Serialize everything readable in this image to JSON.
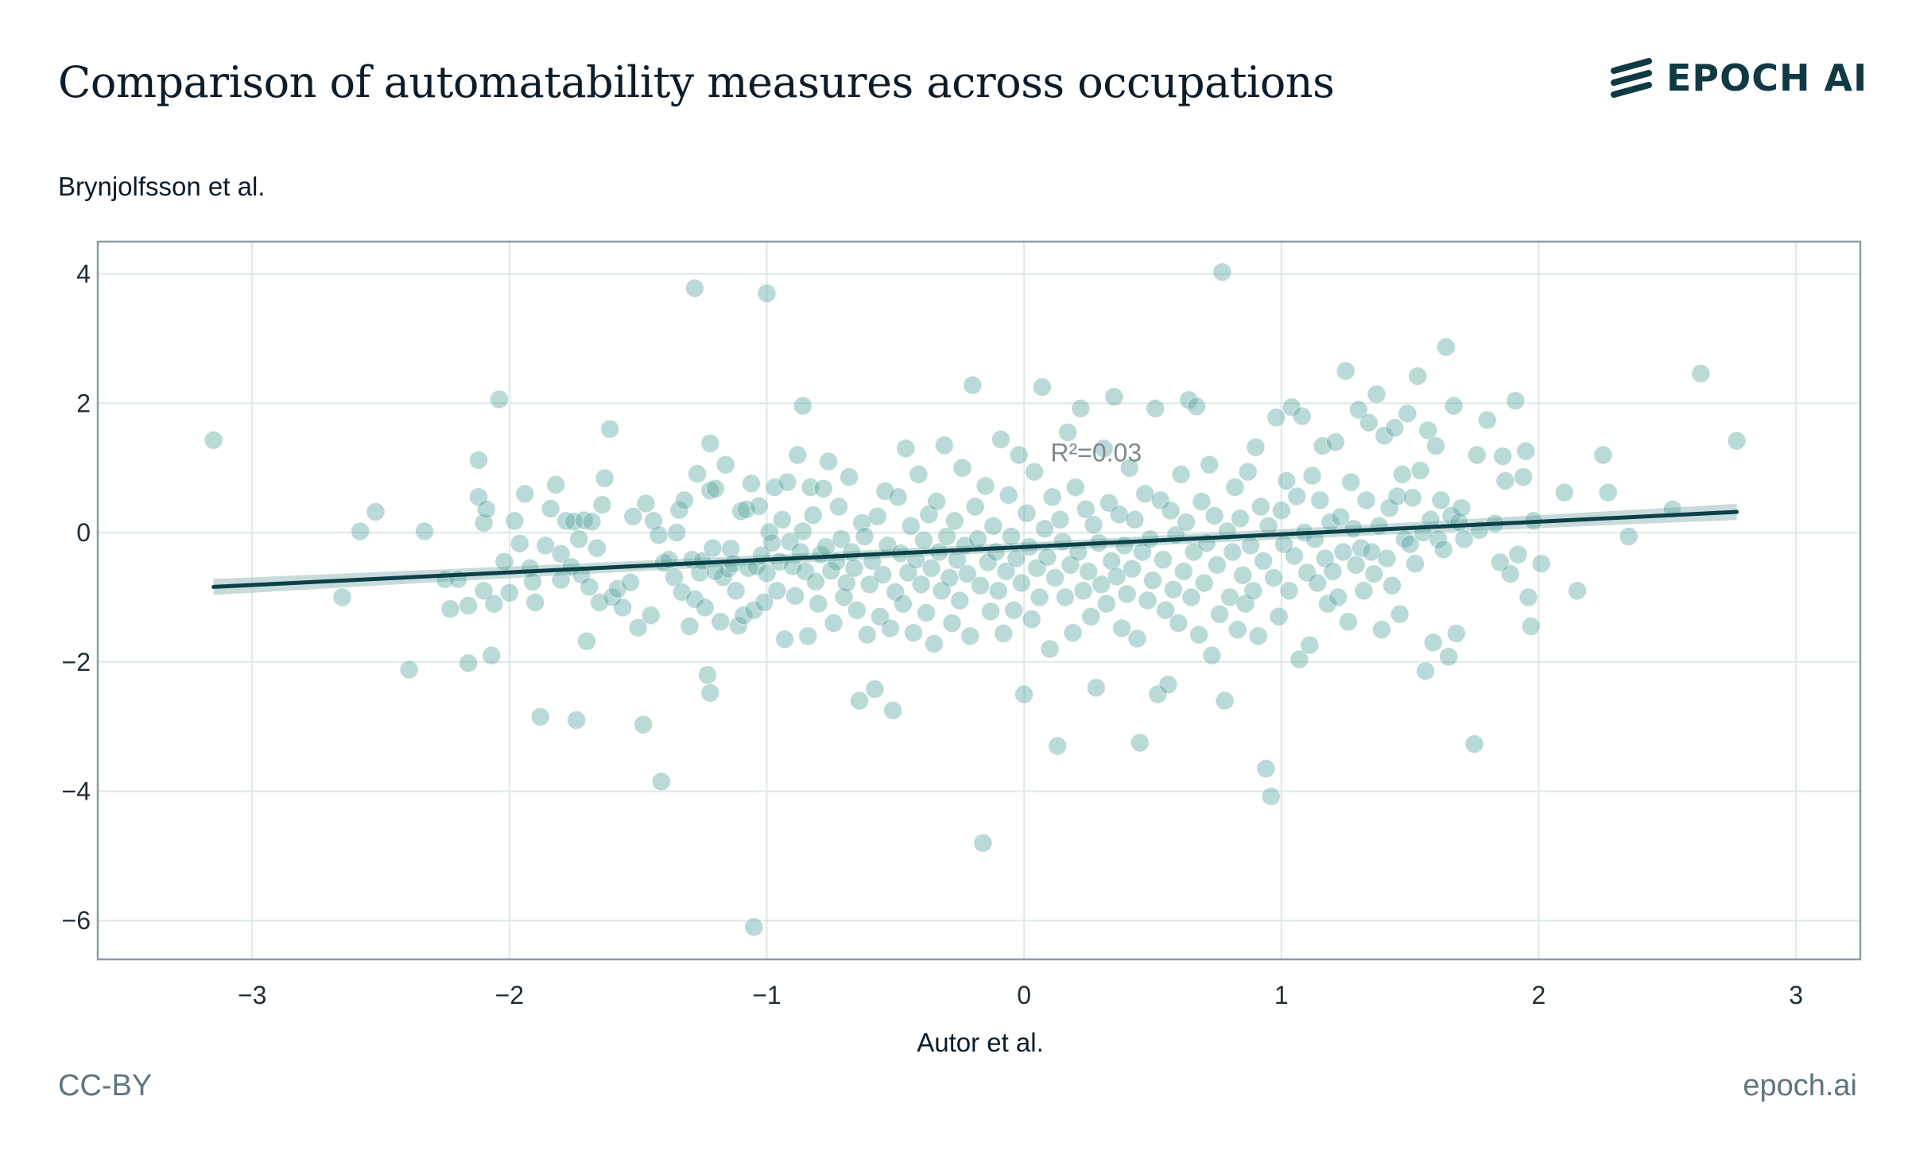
{
  "title": "Comparison of automatability measures across occupations",
  "brand": {
    "name": "EPOCH AI",
    "icon": "epoch-logo-icon"
  },
  "footer": {
    "license": "CC-BY",
    "site": "epoch.ai"
  },
  "colors": {
    "points": "#5aa8a0",
    "line": "#0c4048",
    "band": "#b4cfcd",
    "frame": "#8a9ea3",
    "grid": "#dde8e9"
  },
  "chart_data": {
    "type": "scatter",
    "title": "Comparison of automatability measures across occupations",
    "xlabel": "Autor et al.",
    "ylabel": "Brynjolfsson et al.",
    "xlim": [
      -3.6,
      3.25
    ],
    "ylim": [
      -6.6,
      4.5
    ],
    "x_ticks": [
      -3,
      -2,
      -1,
      0,
      1,
      2,
      3
    ],
    "y_ticks": [
      -6,
      -4,
      -2,
      0,
      2,
      4
    ],
    "x_tick_labels": [
      "−3",
      "−2",
      "−1",
      "0",
      "1",
      "2",
      "3"
    ],
    "y_tick_labels": [
      "−6",
      "−4",
      "−2",
      "0",
      "2",
      "4"
    ],
    "grid": true,
    "annotation": "R²=0.03",
    "annotation_pos": [
      0.28,
      1.0
    ],
    "trend_line": {
      "x": [
        -3.15,
        2.77
      ],
      "y": [
        -0.84,
        0.32
      ]
    },
    "points_approx": [
      [
        -3.15,
        1.43
      ],
      [
        -2.65,
        -1.0
      ],
      [
        -2.58,
        0.02
      ],
      [
        -2.52,
        0.32
      ],
      [
        -2.39,
        -2.12
      ],
      [
        -2.33,
        0.02
      ],
      [
        -2.25,
        -0.72
      ],
      [
        -2.23,
        -1.18
      ],
      [
        -2.2,
        -0.72
      ],
      [
        -2.16,
        -1.13
      ],
      [
        -2.16,
        -2.02
      ],
      [
        -2.12,
        0.55
      ],
      [
        -2.12,
        1.12
      ],
      [
        -2.1,
        0.15
      ],
      [
        -2.1,
        -0.9
      ],
      [
        -2.09,
        0.36
      ],
      [
        -2.07,
        -1.9
      ],
      [
        -2.06,
        -1.1
      ],
      [
        -2.04,
        2.06
      ],
      [
        -2.02,
        -0.45
      ],
      [
        -2.0,
        -0.93
      ],
      [
        -1.98,
        0.18
      ],
      [
        -1.96,
        -0.17
      ],
      [
        -1.94,
        0.6
      ],
      [
        -1.92,
        -0.55
      ],
      [
        -1.91,
        -0.76
      ],
      [
        -1.9,
        -1.08
      ],
      [
        -1.88,
        -2.85
      ],
      [
        -1.86,
        -0.2
      ],
      [
        -1.84,
        0.37
      ],
      [
        -1.82,
        0.74
      ],
      [
        -1.8,
        -0.73
      ],
      [
        -1.8,
        -0.33
      ],
      [
        -1.78,
        0.18
      ],
      [
        -1.76,
        -0.53
      ],
      [
        -1.75,
        0.17
      ],
      [
        -1.74,
        -2.9
      ],
      [
        -1.73,
        -0.1
      ],
      [
        -1.72,
        -0.65
      ],
      [
        -1.71,
        0.19
      ],
      [
        -1.7,
        -1.68
      ],
      [
        -1.69,
        -0.84
      ],
      [
        -1.68,
        0.17
      ],
      [
        -1.66,
        -0.24
      ],
      [
        -1.65,
        -1.08
      ],
      [
        -1.64,
        0.43
      ],
      [
        -1.63,
        0.84
      ],
      [
        -1.61,
        1.6
      ],
      [
        -1.6,
        -1.0
      ],
      [
        -1.58,
        -0.87
      ],
      [
        -1.56,
        -1.16
      ],
      [
        -1.53,
        -0.77
      ],
      [
        -1.52,
        0.25
      ],
      [
        -1.5,
        -1.47
      ],
      [
        -1.48,
        -2.97
      ],
      [
        -1.47,
        0.45
      ],
      [
        -1.45,
        -1.28
      ],
      [
        -1.44,
        0.18
      ],
      [
        -1.42,
        -0.04
      ],
      [
        -1.41,
        -3.85
      ],
      [
        -1.4,
        -0.47
      ],
      [
        -1.38,
        -0.42
      ],
      [
        -1.36,
        -0.69
      ],
      [
        -1.35,
        0.0
      ],
      [
        -1.34,
        0.35
      ],
      [
        -1.33,
        -0.92
      ],
      [
        -1.32,
        0.5
      ],
      [
        -1.3,
        -1.45
      ],
      [
        -1.29,
        -0.42
      ],
      [
        -1.28,
        -1.03
      ],
      [
        -1.27,
        0.91
      ],
      [
        -1.26,
        -0.62
      ],
      [
        -1.25,
        -0.44
      ],
      [
        -1.24,
        -1.16
      ],
      [
        -1.23,
        -2.2
      ],
      [
        -1.22,
        0.65
      ],
      [
        -1.22,
        1.38
      ],
      [
        -1.22,
        -2.48
      ],
      [
        -1.21,
        -0.24
      ],
      [
        -1.2,
        0.68
      ],
      [
        -1.18,
        -1.38
      ],
      [
        -1.17,
        -0.69
      ],
      [
        -1.16,
        1.05
      ],
      [
        -1.15,
        -0.56
      ],
      [
        -1.14,
        -0.25
      ],
      [
        -1.13,
        -0.48
      ],
      [
        -1.12,
        -0.9
      ],
      [
        -1.11,
        -1.44
      ],
      [
        -1.1,
        0.33
      ],
      [
        -1.09,
        -1.28
      ],
      [
        -1.08,
        0.36
      ],
      [
        -1.07,
        -0.55
      ],
      [
        -1.06,
        0.76
      ],
      [
        -1.05,
        -1.2
      ],
      [
        -1.04,
        -0.52
      ],
      [
        -1.03,
        0.41
      ],
      [
        -1.02,
        -0.35
      ],
      [
        -1.01,
        -1.08
      ],
      [
        -1.0,
        -0.63
      ],
      [
        -0.99,
        0.01
      ],
      [
        -0.98,
        -0.16
      ],
      [
        -0.97,
        0.7
      ],
      [
        -0.96,
        -0.9
      ],
      [
        -0.95,
        -0.45
      ],
      [
        -0.94,
        0.2
      ],
      [
        -0.93,
        -1.65
      ],
      [
        -0.92,
        0.78
      ],
      [
        -0.91,
        -0.14
      ],
      [
        -0.9,
        -0.52
      ],
      [
        -0.89,
        -0.98
      ],
      [
        -0.88,
        1.2
      ],
      [
        -0.87,
        -0.3
      ],
      [
        -0.86,
        0.02
      ],
      [
        -0.85,
        -0.6
      ],
      [
        -0.84,
        -1.6
      ],
      [
        -0.83,
        0.7
      ],
      [
        -0.82,
        0.27
      ],
      [
        -0.81,
        -0.76
      ],
      [
        -0.8,
        -1.1
      ],
      [
        -0.79,
        -0.34
      ],
      [
        -0.78,
        0.68
      ],
      [
        -0.77,
        -0.22
      ],
      [
        -0.76,
        1.1
      ],
      [
        -0.75,
        -0.59
      ],
      [
        -0.74,
        -1.4
      ],
      [
        -0.73,
        -0.45
      ],
      [
        -0.72,
        0.4
      ],
      [
        -0.71,
        -0.1
      ],
      [
        -0.7,
        -1.0
      ],
      [
        -0.69,
        -0.78
      ],
      [
        -0.68,
        0.86
      ],
      [
        -0.67,
        -0.3
      ],
      [
        -0.66,
        -0.55
      ],
      [
        -0.65,
        -1.2
      ],
      [
        -0.64,
        -2.6
      ],
      [
        -0.63,
        0.15
      ],
      [
        -0.62,
        -0.06
      ],
      [
        -0.61,
        -1.58
      ],
      [
        -0.6,
        -0.8
      ],
      [
        -0.59,
        -0.44
      ],
      [
        -0.58,
        -2.42
      ],
      [
        -0.57,
        0.25
      ],
      [
        -0.56,
        -1.3
      ],
      [
        -0.55,
        -0.65
      ],
      [
        -0.54,
        0.64
      ],
      [
        -0.53,
        -0.2
      ],
      [
        -0.52,
        -1.48
      ],
      [
        -0.51,
        -2.75
      ],
      [
        -0.5,
        -0.92
      ],
      [
        -0.49,
        0.55
      ],
      [
        -0.48,
        -0.32
      ],
      [
        -0.47,
        -1.1
      ],
      [
        -0.46,
        1.3
      ],
      [
        -0.45,
        -0.62
      ],
      [
        -0.44,
        0.1
      ],
      [
        -0.43,
        -1.55
      ],
      [
        -0.42,
        -0.42
      ],
      [
        -0.41,
        0.9
      ],
      [
        -0.4,
        -0.8
      ],
      [
        -0.39,
        -0.12
      ],
      [
        -0.38,
        -1.24
      ],
      [
        -0.37,
        0.28
      ],
      [
        -0.36,
        -0.55
      ],
      [
        -0.35,
        -1.72
      ],
      [
        -0.34,
        0.48
      ],
      [
        -0.33,
        -0.3
      ],
      [
        -0.32,
        -0.9
      ],
      [
        -0.31,
        1.35
      ],
      [
        -0.3,
        -0.06
      ],
      [
        -0.29,
        -0.7
      ],
      [
        -0.28,
        -1.4
      ],
      [
        -0.27,
        0.18
      ],
      [
        -0.26,
        -0.42
      ],
      [
        -0.25,
        -1.05
      ],
      [
        -0.24,
        1.0
      ],
      [
        -0.23,
        -0.2
      ],
      [
        -0.22,
        -0.64
      ],
      [
        -0.21,
        -1.6
      ],
      [
        -0.2,
        2.28
      ],
      [
        -0.19,
        0.4
      ],
      [
        -0.18,
        -0.1
      ],
      [
        -0.17,
        -0.82
      ],
      [
        -0.16,
        -4.8
      ],
      [
        -0.15,
        0.72
      ],
      [
        -0.14,
        -0.46
      ],
      [
        -0.13,
        -1.22
      ],
      [
        -0.12,
        0.1
      ],
      [
        -0.11,
        -0.3
      ],
      [
        -0.1,
        -0.9
      ],
      [
        -0.09,
        1.44
      ],
      [
        -0.08,
        -1.56
      ],
      [
        -0.07,
        -0.6
      ],
      [
        -0.06,
        0.58
      ],
      [
        -0.05,
        -0.06
      ],
      [
        -0.04,
        -1.2
      ],
      [
        -0.03,
        -0.4
      ],
      [
        -0.02,
        1.2
      ],
      [
        -0.01,
        -0.78
      ],
      [
        0.0,
        -2.5
      ],
      [
        0.01,
        0.3
      ],
      [
        0.02,
        -0.22
      ],
      [
        0.03,
        -1.34
      ],
      [
        0.04,
        0.94
      ],
      [
        0.05,
        -0.55
      ],
      [
        0.06,
        -1.0
      ],
      [
        0.07,
        2.25
      ],
      [
        0.08,
        0.06
      ],
      [
        0.09,
        -0.38
      ],
      [
        0.1,
        -1.8
      ],
      [
        0.11,
        0.55
      ],
      [
        0.12,
        -0.7
      ],
      [
        0.13,
        -3.3
      ],
      [
        0.14,
        0.2
      ],
      [
        0.15,
        -0.14
      ],
      [
        0.16,
        -1.0
      ],
      [
        0.17,
        1.55
      ],
      [
        0.18,
        -0.5
      ],
      [
        0.19,
        -1.55
      ],
      [
        0.2,
        0.7
      ],
      [
        0.21,
        -0.3
      ],
      [
        0.22,
        1.92
      ],
      [
        0.23,
        -0.9
      ],
      [
        0.24,
        0.36
      ],
      [
        0.25,
        -0.6
      ],
      [
        0.26,
        -1.3
      ],
      [
        0.27,
        0.12
      ],
      [
        0.28,
        -2.4
      ],
      [
        0.29,
        -0.16
      ],
      [
        0.3,
        -0.8
      ],
      [
        0.31,
        1.3
      ],
      [
        0.32,
        -1.1
      ],
      [
        0.33,
        0.46
      ],
      [
        0.34,
        -0.44
      ],
      [
        0.35,
        2.1
      ],
      [
        0.36,
        -0.68
      ],
      [
        0.37,
        0.28
      ],
      [
        0.38,
        -1.48
      ],
      [
        0.39,
        -0.2
      ],
      [
        0.4,
        -0.95
      ],
      [
        0.41,
        1.0
      ],
      [
        0.42,
        -0.56
      ],
      [
        0.43,
        0.2
      ],
      [
        0.44,
        -1.64
      ],
      [
        0.45,
        -3.25
      ],
      [
        0.46,
        -0.3
      ],
      [
        0.47,
        0.6
      ],
      [
        0.48,
        -1.05
      ],
      [
        0.49,
        -0.1
      ],
      [
        0.5,
        -0.74
      ],
      [
        0.51,
        1.92
      ],
      [
        0.52,
        -2.5
      ],
      [
        0.53,
        0.5
      ],
      [
        0.54,
        -0.42
      ],
      [
        0.55,
        -1.2
      ],
      [
        0.56,
        -2.35
      ],
      [
        0.57,
        0.34
      ],
      [
        0.58,
        -0.88
      ],
      [
        0.59,
        -0.04
      ],
      [
        0.6,
        -1.4
      ],
      [
        0.61,
        0.9
      ],
      [
        0.62,
        -0.6
      ],
      [
        0.63,
        0.16
      ],
      [
        0.64,
        2.05
      ],
      [
        0.65,
        -1.0
      ],
      [
        0.66,
        -0.3
      ],
      [
        0.67,
        1.95
      ],
      [
        0.68,
        -1.58
      ],
      [
        0.69,
        0.48
      ],
      [
        0.7,
        -0.78
      ],
      [
        0.71,
        -0.16
      ],
      [
        0.72,
        1.05
      ],
      [
        0.73,
        -1.9
      ],
      [
        0.74,
        0.26
      ],
      [
        0.75,
        -0.5
      ],
      [
        0.76,
        -1.26
      ],
      [
        0.77,
        4.03
      ],
      [
        0.78,
        -2.6
      ],
      [
        0.79,
        0.02
      ],
      [
        0.8,
        -1.0
      ],
      [
        0.81,
        -0.3
      ],
      [
        0.82,
        0.7
      ],
      [
        0.83,
        -1.5
      ],
      [
        0.84,
        0.22
      ],
      [
        0.85,
        -0.66
      ],
      [
        0.86,
        -1.1
      ],
      [
        0.87,
        0.94
      ],
      [
        0.88,
        -0.2
      ],
      [
        0.89,
        -0.9
      ],
      [
        0.9,
        1.32
      ],
      [
        0.91,
        -1.6
      ],
      [
        0.92,
        0.4
      ],
      [
        0.93,
        -0.44
      ],
      [
        0.94,
        -3.65
      ],
      [
        0.95,
        0.1
      ],
      [
        0.96,
        -4.08
      ],
      [
        0.97,
        -0.7
      ],
      [
        0.98,
        1.78
      ],
      [
        0.99,
        -1.3
      ],
      [
        1.0,
        0.34
      ],
      [
        1.01,
        -0.18
      ],
      [
        1.02,
        0.8
      ],
      [
        1.03,
        -0.9
      ],
      [
        1.04,
        1.94
      ],
      [
        1.05,
        -0.36
      ],
      [
        1.06,
        0.56
      ],
      [
        1.07,
        -1.96
      ],
      [
        1.08,
        1.8
      ],
      [
        1.09,
        0.0
      ],
      [
        1.1,
        -0.62
      ],
      [
        1.11,
        -1.74
      ],
      [
        1.12,
        0.88
      ],
      [
        1.13,
        -0.1
      ],
      [
        1.14,
        -0.78
      ],
      [
        1.15,
        0.5
      ],
      [
        1.16,
        1.34
      ],
      [
        1.17,
        -0.4
      ],
      [
        1.18,
        -1.1
      ],
      [
        1.19,
        0.16
      ],
      [
        1.2,
        -0.6
      ],
      [
        1.21,
        1.4
      ],
      [
        1.22,
        -1.0
      ],
      [
        1.23,
        0.24
      ],
      [
        1.24,
        -0.3
      ],
      [
        1.25,
        2.5
      ],
      [
        1.26,
        -1.38
      ],
      [
        1.27,
        0.78
      ],
      [
        1.28,
        0.06
      ],
      [
        1.29,
        -0.5
      ],
      [
        1.3,
        1.9
      ],
      [
        1.31,
        -0.24
      ],
      [
        1.32,
        -0.9
      ],
      [
        1.33,
        0.5
      ],
      [
        1.34,
        1.7
      ],
      [
        1.35,
        -0.3
      ],
      [
        1.36,
        -0.64
      ],
      [
        1.37,
        2.14
      ],
      [
        1.38,
        0.1
      ],
      [
        1.39,
        -1.5
      ],
      [
        1.4,
        1.5
      ],
      [
        1.41,
        -0.4
      ],
      [
        1.42,
        0.38
      ],
      [
        1.43,
        -0.82
      ],
      [
        1.44,
        1.62
      ],
      [
        1.45,
        0.56
      ],
      [
        1.46,
        -1.26
      ],
      [
        1.47,
        0.9
      ],
      [
        1.48,
        -0.1
      ],
      [
        1.49,
        1.84
      ],
      [
        1.5,
        -0.18
      ],
      [
        1.51,
        0.54
      ],
      [
        1.52,
        -0.48
      ],
      [
        1.53,
        2.42
      ],
      [
        1.54,
        0.96
      ],
      [
        1.55,
        0.0
      ],
      [
        1.56,
        -2.14
      ],
      [
        1.57,
        1.58
      ],
      [
        1.58,
        0.2
      ],
      [
        1.59,
        -1.7
      ],
      [
        1.6,
        1.34
      ],
      [
        1.61,
        -0.1
      ],
      [
        1.62,
        0.5
      ],
      [
        1.63,
        -0.26
      ],
      [
        1.64,
        2.87
      ],
      [
        1.65,
        -1.92
      ],
      [
        1.66,
        0.26
      ],
      [
        1.67,
        1.96
      ],
      [
        1.68,
        -1.56
      ],
      [
        1.69,
        0.16
      ],
      [
        1.7,
        0.38
      ],
      [
        1.71,
        -0.1
      ],
      [
        1.75,
        -3.27
      ],
      [
        1.76,
        1.2
      ],
      [
        1.77,
        0.04
      ],
      [
        1.8,
        1.74
      ],
      [
        1.83,
        0.14
      ],
      [
        1.85,
        -0.46
      ],
      [
        1.86,
        1.18
      ],
      [
        1.87,
        0.8
      ],
      [
        1.89,
        -0.64
      ],
      [
        1.91,
        2.04
      ],
      [
        1.92,
        -0.34
      ],
      [
        1.94,
        0.86
      ],
      [
        1.95,
        1.26
      ],
      [
        1.96,
        -1.0
      ],
      [
        1.97,
        -1.45
      ],
      [
        1.98,
        0.18
      ],
      [
        2.01,
        -0.48
      ],
      [
        2.1,
        0.62
      ],
      [
        2.15,
        -0.9
      ],
      [
        2.25,
        1.2
      ],
      [
        2.27,
        0.62
      ],
      [
        2.35,
        -0.06
      ],
      [
        2.52,
        0.36
      ],
      [
        2.63,
        2.46
      ],
      [
        2.77,
        1.42
      ],
      [
        -1.28,
        3.78
      ],
      [
        -1.0,
        3.7
      ],
      [
        -1.05,
        -6.1
      ],
      [
        -1.2,
        -0.6
      ],
      [
        -0.86,
        1.96
      ]
    ]
  }
}
